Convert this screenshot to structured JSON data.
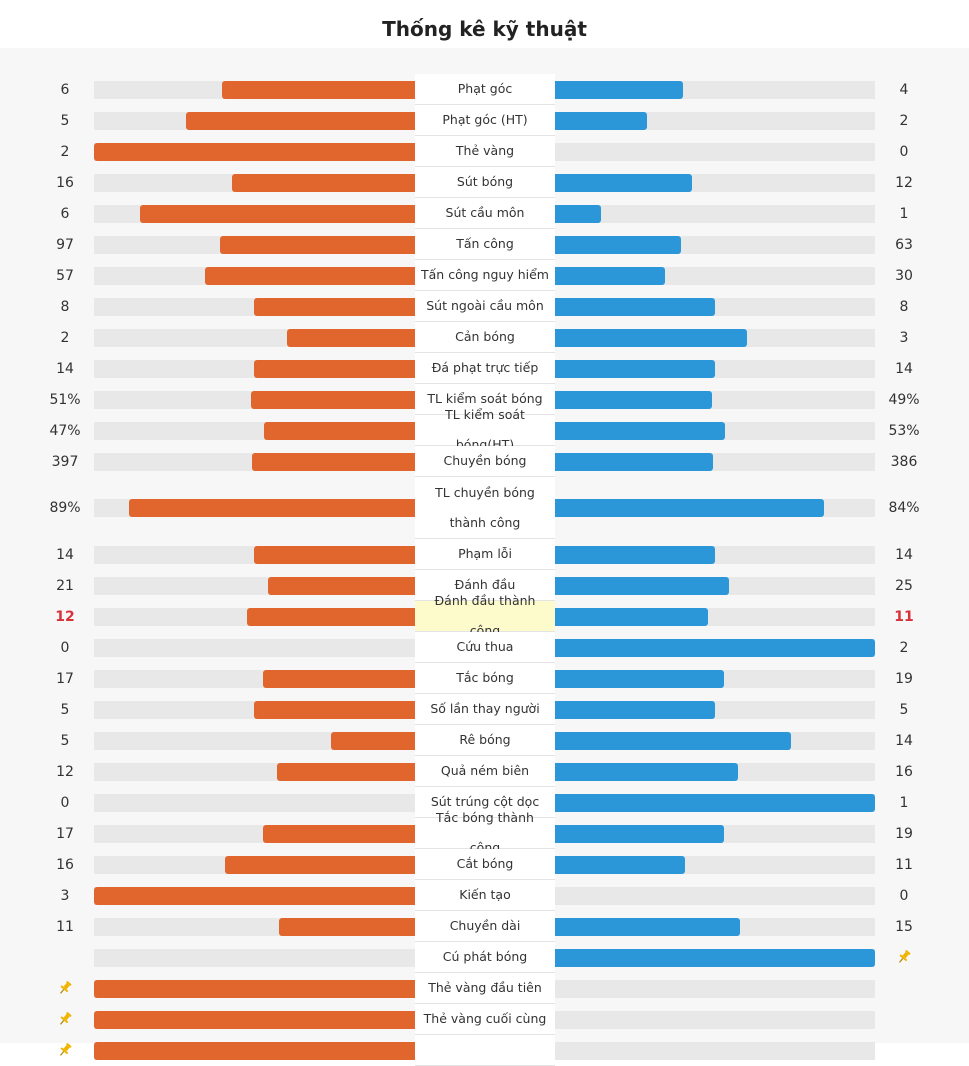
{
  "header": {
    "title": "Thống kê kỹ thuật"
  },
  "colors": {
    "home": "#e0662e",
    "away": "#2b97d9",
    "highlight_text": "#d9313a",
    "highlight_bg": "#fdfacb",
    "pin": "#f0b400"
  },
  "stats": [
    {
      "label": "Phạt góc",
      "home": "6",
      "away": "4",
      "home_frac": 0.6,
      "away_frac": 0.4
    },
    {
      "label": "Phạt góc (HT)",
      "home": "5",
      "away": "2",
      "home_frac": 0.714,
      "away_frac": 0.286
    },
    {
      "label": "Thẻ vàng",
      "home": "2",
      "away": "0",
      "home_frac": 1.0,
      "away_frac": 0.0
    },
    {
      "label": "Sút bóng",
      "home": "16",
      "away": "12",
      "home_frac": 0.571,
      "away_frac": 0.429
    },
    {
      "label": "Sút cầu môn",
      "home": "6",
      "away": "1",
      "home_frac": 0.857,
      "away_frac": 0.143
    },
    {
      "label": "Tấn công",
      "home": "97",
      "away": "63",
      "home_frac": 0.606,
      "away_frac": 0.394
    },
    {
      "label": "Tấn công nguy hiểm",
      "home": "57",
      "away": "30",
      "home_frac": 0.655,
      "away_frac": 0.345
    },
    {
      "label": "Sút ngoài cầu môn",
      "home": "8",
      "away": "8",
      "home_frac": 0.5,
      "away_frac": 0.5
    },
    {
      "label": "Cản bóng",
      "home": "2",
      "away": "3",
      "home_frac": 0.4,
      "away_frac": 0.6
    },
    {
      "label": "Đá phạt trực tiếp",
      "home": "14",
      "away": "14",
      "home_frac": 0.5,
      "away_frac": 0.5
    },
    {
      "label": "TL kiểm soát bóng",
      "home": "51%",
      "away": "49%",
      "home_frac": 0.51,
      "away_frac": 0.49
    },
    {
      "label": "TL kiểm soát bóng(HT)",
      "home": "47%",
      "away": "53%",
      "home_frac": 0.47,
      "away_frac": 0.53
    },
    {
      "label": "Chuyền bóng",
      "home": "397",
      "away": "386",
      "home_frac": 0.507,
      "away_frac": 0.493
    },
    {
      "label": "TL chuyền bóng thành công",
      "home": "89%",
      "away": "84%",
      "home_frac": 0.89,
      "away_frac": 0.84,
      "tall": true
    },
    {
      "label": "Phạm lỗi",
      "home": "14",
      "away": "14",
      "home_frac": 0.5,
      "away_frac": 0.5
    },
    {
      "label": "Đánh đầu",
      "home": "21",
      "away": "25",
      "home_frac": 0.457,
      "away_frac": 0.543
    },
    {
      "label": "Đánh đầu thành công",
      "home": "12",
      "away": "11",
      "home_frac": 0.522,
      "away_frac": 0.478,
      "highlight": true
    },
    {
      "label": "Cứu thua",
      "home": "0",
      "away": "2",
      "home_frac": 0.0,
      "away_frac": 1.0
    },
    {
      "label": "Tắc bóng",
      "home": "17",
      "away": "19",
      "home_frac": 0.472,
      "away_frac": 0.528
    },
    {
      "label": "Số lần thay người",
      "home": "5",
      "away": "5",
      "home_frac": 0.5,
      "away_frac": 0.5
    },
    {
      "label": "Rê bóng",
      "home": "5",
      "away": "14",
      "home_frac": 0.263,
      "away_frac": 0.737
    },
    {
      "label": "Quả ném biên",
      "home": "12",
      "away": "16",
      "home_frac": 0.429,
      "away_frac": 0.571
    },
    {
      "label": "Sút trúng cột dọc",
      "home": "0",
      "away": "1",
      "home_frac": 0.0,
      "away_frac": 1.0
    },
    {
      "label": "Tắc bóng thành công",
      "home": "17",
      "away": "19",
      "home_frac": 0.472,
      "away_frac": 0.528
    },
    {
      "label": "Cắt bóng",
      "home": "16",
      "away": "11",
      "home_frac": 0.593,
      "away_frac": 0.407
    },
    {
      "label": "Kiến tạo",
      "home": "3",
      "away": "0",
      "home_frac": 1.0,
      "away_frac": 0.0
    },
    {
      "label": "Chuyền dài",
      "home": "11",
      "away": "15",
      "home_frac": 0.423,
      "away_frac": 0.577
    },
    {
      "label": "Cú phát bóng",
      "home": "",
      "away": "",
      "home_frac": 0.0,
      "away_frac": 1.0,
      "pin_side": "away"
    },
    {
      "label": "Thẻ vàng đầu tiên",
      "home": "",
      "away": "",
      "home_frac": 1.0,
      "away_frac": 0.0,
      "pin_side": "home"
    },
    {
      "label": "Thẻ vàng cuối cùng",
      "home": "",
      "away": "",
      "home_frac": 1.0,
      "away_frac": 0.0,
      "pin_side": "home"
    },
    {
      "label": "",
      "home": "",
      "away": "",
      "home_frac": 1.0,
      "away_frac": 0.0,
      "pin_side": "home"
    }
  ]
}
